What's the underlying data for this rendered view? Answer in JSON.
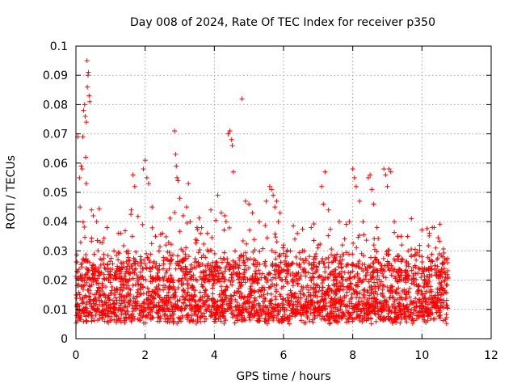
{
  "chart_data": {
    "type": "scatter",
    "title": "Day 008 of 2024, Rate Of TEC Index for receiver p350",
    "xlabel": "GPS time / hours",
    "ylabel": "ROTI / TECUs",
    "xlim": [
      0,
      12
    ],
    "ylim": [
      0,
      0.1
    ],
    "x_ticks": [
      0,
      2,
      4,
      6,
      8,
      10,
      12
    ],
    "y_ticks": [
      0,
      0.01,
      0.02,
      0.03,
      0.04,
      0.05,
      0.06,
      0.07,
      0.08,
      0.09,
      0.1
    ],
    "x_tick_labels": [
      "0",
      "2",
      "4",
      "6",
      "8",
      "10",
      "12"
    ],
    "y_tick_labels": [
      "0",
      "0.01",
      "0.02",
      "0.03",
      "0.04",
      "0.05",
      "0.06",
      "0.07",
      "0.08",
      "0.09",
      "0.1"
    ],
    "grid": true,
    "marker": "+",
    "color": "#ff0000",
    "data_range_hours": [
      0,
      10.75
    ],
    "series": [
      {
        "name": "ROTI",
        "points": [
          [
            0.05,
            0.069
          ],
          [
            0.1,
            0.055
          ],
          [
            0.15,
            0.059
          ],
          [
            0.2,
            0.069
          ],
          [
            0.22,
            0.078
          ],
          [
            0.25,
            0.08
          ],
          [
            0.27,
            0.076
          ],
          [
            0.3,
            0.074
          ],
          [
            0.32,
            0.095
          ],
          [
            0.33,
            0.086
          ],
          [
            0.35,
            0.09
          ],
          [
            0.36,
            0.091
          ],
          [
            0.38,
            0.083
          ],
          [
            0.4,
            0.081
          ],
          [
            0.28,
            0.062
          ],
          [
            0.18,
            0.058
          ],
          [
            0.3,
            0.053
          ],
          [
            0.12,
            0.045
          ],
          [
            0.45,
            0.044
          ],
          [
            0.5,
            0.042
          ],
          [
            0.6,
            0.04
          ],
          [
            0.7,
            0.033
          ],
          [
            0.9,
            0.038
          ],
          [
            1.1,
            0.03
          ],
          [
            1.3,
            0.036
          ],
          [
            1.5,
            0.03
          ],
          [
            1.6,
            0.044
          ],
          [
            1.65,
            0.056
          ],
          [
            1.7,
            0.052
          ],
          [
            1.95,
            0.058
          ],
          [
            2.0,
            0.061
          ],
          [
            2.05,
            0.055
          ],
          [
            2.1,
            0.053
          ],
          [
            2.2,
            0.045
          ],
          [
            2.3,
            0.035
          ],
          [
            2.5,
            0.036
          ],
          [
            2.6,
            0.032
          ],
          [
            2.85,
            0.071
          ],
          [
            2.88,
            0.063
          ],
          [
            2.9,
            0.059
          ],
          [
            2.92,
            0.055
          ],
          [
            2.95,
            0.054
          ],
          [
            3.0,
            0.048
          ],
          [
            3.1,
            0.042
          ],
          [
            3.2,
            0.045
          ],
          [
            3.25,
            0.053
          ],
          [
            3.3,
            0.04
          ],
          [
            3.5,
            0.038
          ],
          [
            3.6,
            0.036
          ],
          [
            3.8,
            0.036
          ],
          [
            3.9,
            0.044
          ],
          [
            4.1,
            0.049
          ],
          [
            4.2,
            0.043
          ],
          [
            4.3,
            0.042
          ],
          [
            4.4,
            0.07
          ],
          [
            4.45,
            0.071
          ],
          [
            4.5,
            0.068
          ],
          [
            4.52,
            0.066
          ],
          [
            4.55,
            0.057
          ],
          [
            4.6,
            0.03
          ],
          [
            4.8,
            0.082
          ],
          [
            4.9,
            0.047
          ],
          [
            5.0,
            0.046
          ],
          [
            5.1,
            0.043
          ],
          [
            5.3,
            0.04
          ],
          [
            5.5,
            0.047
          ],
          [
            5.6,
            0.052
          ],
          [
            5.65,
            0.051
          ],
          [
            5.7,
            0.049
          ],
          [
            5.75,
            0.045
          ],
          [
            5.8,
            0.047
          ],
          [
            5.85,
            0.04
          ],
          [
            5.9,
            0.043
          ],
          [
            6.0,
            0.032
          ],
          [
            6.2,
            0.03
          ],
          [
            6.4,
            0.036
          ],
          [
            6.6,
            0.03
          ],
          [
            6.8,
            0.038
          ],
          [
            7.0,
            0.032
          ],
          [
            7.1,
            0.052
          ],
          [
            7.15,
            0.046
          ],
          [
            7.2,
            0.057
          ],
          [
            7.3,
            0.044
          ],
          [
            7.5,
            0.027
          ],
          [
            7.7,
            0.032
          ],
          [
            7.9,
            0.04
          ],
          [
            8.0,
            0.058
          ],
          [
            8.05,
            0.055
          ],
          [
            8.1,
            0.052
          ],
          [
            8.2,
            0.047
          ],
          [
            8.3,
            0.04
          ],
          [
            8.45,
            0.055
          ],
          [
            8.5,
            0.056
          ],
          [
            8.55,
            0.051
          ],
          [
            8.6,
            0.046
          ],
          [
            8.7,
            0.038
          ],
          [
            8.9,
            0.058
          ],
          [
            8.95,
            0.056
          ],
          [
            9.0,
            0.052
          ],
          [
            9.05,
            0.058
          ],
          [
            9.1,
            0.057
          ],
          [
            9.2,
            0.04
          ],
          [
            9.4,
            0.035
          ],
          [
            9.6,
            0.03
          ],
          [
            9.8,
            0.025
          ],
          [
            10.0,
            0.028
          ],
          [
            10.2,
            0.024
          ],
          [
            10.3,
            0.038
          ],
          [
            10.35,
            0.038
          ],
          [
            10.4,
            0.031
          ],
          [
            10.5,
            0.029
          ],
          [
            10.6,
            0.028
          ],
          [
            10.7,
            0.027
          ],
          [
            10.75,
            0.021
          ]
        ]
      }
    ]
  }
}
